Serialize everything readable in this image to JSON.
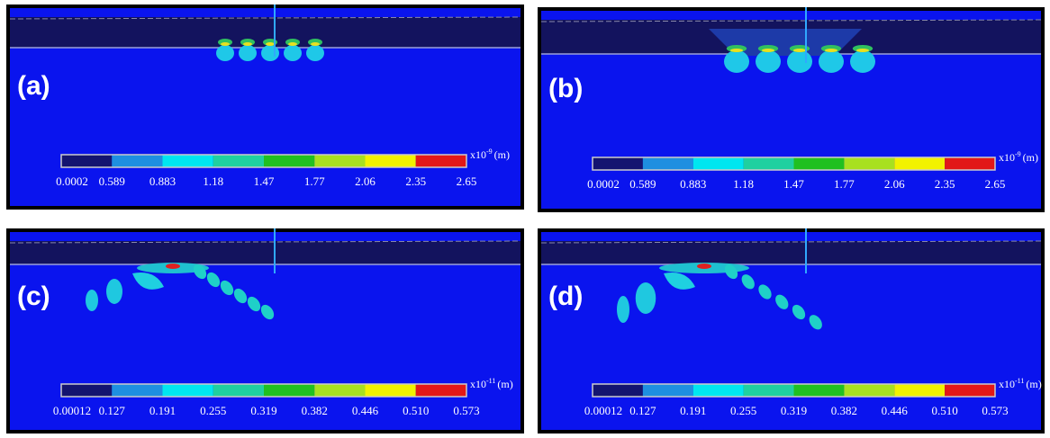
{
  "panels": [
    {
      "label": "(a)",
      "unit": {
        "base": "x10",
        "exponent": "-9",
        "suffix": "(m)"
      },
      "ticks": [
        "0.0002",
        "0.589",
        "0.883",
        "1.18",
        "1.47",
        "1.77",
        "2.06",
        "2.35",
        "2.65"
      ]
    },
    {
      "label": "(b)",
      "unit": {
        "base": "x10",
        "exponent": "-9",
        "suffix": "(m)"
      },
      "ticks": [
        "0.0002",
        "0.589",
        "0.883",
        "1.18",
        "1.47",
        "1.77",
        "2.06",
        "2.35",
        "2.65"
      ]
    },
    {
      "label": "(c)",
      "unit": {
        "base": "x10",
        "exponent": "-11",
        "suffix": "(m)"
      },
      "ticks": [
        "0.00012",
        "0.127",
        "0.191",
        "0.255",
        "0.319",
        "0.382",
        "0.446",
        "0.510",
        "0.573"
      ]
    },
    {
      "label": "(d)",
      "unit": {
        "base": "x10",
        "exponent": "-11",
        "suffix": "(m)"
      },
      "ticks": [
        "0.00012",
        "0.127",
        "0.191",
        "0.255",
        "0.319",
        "0.382",
        "0.446",
        "0.510",
        "0.573"
      ]
    }
  ]
}
